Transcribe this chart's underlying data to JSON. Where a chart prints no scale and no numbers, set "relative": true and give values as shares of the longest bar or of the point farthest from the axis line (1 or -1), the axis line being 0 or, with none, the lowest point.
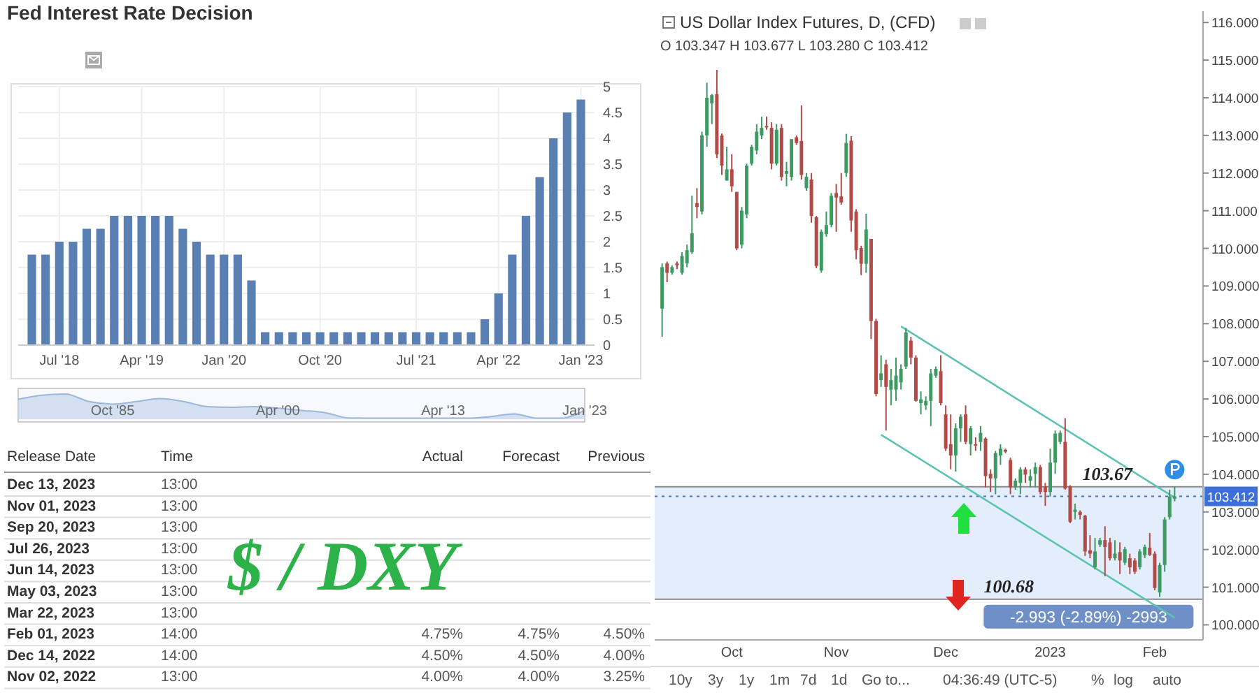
{
  "chart_data": [
    {
      "type": "bar",
      "title": "Fed Interest Rate Decision",
      "categories": [
        null,
        null,
        "Jul '18",
        null,
        null,
        null,
        null,
        null,
        "Apr '19",
        null,
        null,
        null,
        null,
        null,
        "Jan '20",
        null,
        null,
        null,
        null,
        null,
        null,
        "Oct '20",
        null,
        null,
        null,
        null,
        null,
        null,
        "Jul '21",
        null,
        null,
        null,
        null,
        null,
        "Apr '22",
        null,
        null,
        null,
        null,
        null,
        "Jan '23"
      ],
      "values": [
        1.75,
        1.75,
        2,
        2,
        2.25,
        2.25,
        2.5,
        2.5,
        2.5,
        2.5,
        2.5,
        2.25,
        2,
        1.75,
        1.75,
        1.75,
        1.25,
        0.25,
        0.25,
        0.25,
        0.25,
        0.25,
        0.25,
        0.25,
        0.25,
        0.25,
        0.25,
        0.25,
        0.25,
        0.25,
        0.25,
        0.25,
        0.25,
        0.5,
        1,
        1.75,
        2.5,
        3.25,
        4,
        4.5,
        4.75
      ],
      "color": "#5a7fb2",
      "ylim": [
        0,
        5
      ],
      "yticks": [
        0,
        0.5,
        1,
        1.5,
        2,
        2.5,
        3,
        3.5,
        4,
        4.5,
        5
      ],
      "grid": true
    },
    {
      "type": "area",
      "relative": true,
      "tick_labels": "x",
      "color": "#b9cfea",
      "categories": [
        null,
        null,
        null,
        null,
        "Oct '85",
        null,
        null,
        null,
        null,
        null,
        null,
        "Apr '00",
        null,
        null,
        null,
        null,
        null,
        null,
        "Apr '13",
        null,
        null,
        null,
        null,
        null,
        "Jan '23"
      ],
      "values": [
        0.79,
        0.95,
        1,
        0.7,
        0.6,
        0.7,
        0.82,
        0.7,
        0.5,
        0.47,
        0.5,
        0.44,
        0.35,
        0.26,
        0.05,
        0.04,
        0.04,
        0.04,
        0.04,
        0.04,
        0.1,
        0.21,
        0.04,
        0.04,
        0.35
      ]
    },
    {
      "type": "other",
      "categories": [
        "Release Date",
        "Time",
        "Actual",
        "Forecast",
        "Previous"
      ],
      "y_categories": [
        "Dec 13, 2023",
        "Nov 01, 2023",
        "Sep 20, 2023",
        "Jul 26, 2023",
        "Jun 14, 2023",
        "May 03, 2023",
        "Mar 22, 2023",
        "Feb 01, 2023",
        "Dec 14, 2022",
        "Nov 02, 2022"
      ],
      "cell_labels": [
        [
          "13:00",
          null,
          null,
          null
        ],
        [
          "13:00",
          null,
          null,
          null
        ],
        [
          "13:00",
          null,
          null,
          null
        ],
        [
          "13:00",
          null,
          null,
          null
        ],
        [
          "13:00",
          null,
          null,
          null
        ],
        [
          "13:00",
          null,
          null,
          null
        ],
        [
          "13:00",
          null,
          null,
          null
        ],
        [
          "14:00",
          "4.75%",
          "4.75%",
          "4.50%"
        ],
        [
          "14:00",
          "4.50%",
          "4.50%",
          "4.00%"
        ],
        [
          "13:00",
          "4.00%",
          "4.00%",
          "3.25%"
        ]
      ],
      "annotations": [
        "$ / DXY"
      ]
    },
    {
      "type": "candlestick",
      "title": "US Dollar Index Futures, D, (CFD)",
      "subtitle": "O 103.347  H 103.677  L 103.280  C 103.412",
      "categories": [
        null,
        null,
        null,
        null,
        null,
        null,
        null,
        null,
        null,
        null,
        null,
        null,
        null,
        null,
        "Oct",
        null,
        null,
        null,
        null,
        null,
        null,
        null,
        null,
        null,
        null,
        null,
        null,
        null,
        null,
        null,
        null,
        null,
        null,
        null,
        null,
        "Nov",
        null,
        null,
        null,
        null,
        null,
        null,
        null,
        null,
        null,
        null,
        null,
        null,
        null,
        null,
        null,
        null,
        null,
        null,
        null,
        null,
        null,
        "Dec",
        null,
        null,
        null,
        null,
        null,
        null,
        null,
        null,
        null,
        null,
        null,
        null,
        null,
        null,
        null,
        null,
        null,
        null,
        null,
        null,
        "2023",
        null,
        null,
        null,
        null,
        null,
        null,
        null,
        null,
        null,
        null,
        null,
        null,
        null,
        null,
        null,
        null,
        null,
        null,
        null,
        null,
        "Feb",
        null,
        null,
        null,
        null
      ],
      "ohlc": [
        [
          108.4,
          109.6,
          107.65,
          109.5
        ],
        [
          109.6,
          109.65,
          109.1,
          109.35
        ],
        [
          109.35,
          109.55,
          109.3,
          109.5
        ],
        [
          109.6,
          109.65,
          109.45,
          109.55
        ],
        [
          109.35,
          109.9,
          109.3,
          109.8
        ],
        [
          109.6,
          110.1,
          109.5,
          109.95
        ],
        [
          109.9,
          111.4,
          109.85,
          110.4
        ],
        [
          111.2,
          111.6,
          110.8,
          111.1
        ],
        [
          110.98,
          113.1,
          110.9,
          113.0
        ],
        [
          113.0,
          114.4,
          112.7,
          114.0
        ],
        [
          113.85,
          114.1,
          113.3,
          114.07
        ],
        [
          114.1,
          114.74,
          112.4,
          112.5
        ],
        [
          113.0,
          113.05,
          111.95,
          112.2
        ],
        [
          111.8,
          112.7,
          111.8,
          112.1
        ],
        [
          112.1,
          112.5,
          111.5,
          111.65
        ],
        [
          111.5,
          111.5,
          109.95,
          110.0
        ],
        [
          110.1,
          111.1,
          110.0,
          111.0
        ],
        [
          110.9,
          112.25,
          110.8,
          112.2
        ],
        [
          112.25,
          112.75,
          112.2,
          112.7
        ],
        [
          112.6,
          113.3,
          112.5,
          113.1
        ],
        [
          113.0,
          113.5,
          112.9,
          113.2
        ],
        [
          113.25,
          113.5,
          113.15,
          113.22
        ],
        [
          113.2,
          113.35,
          112.1,
          112.25
        ],
        [
          112.25,
          113.3,
          112.2,
          113.15
        ],
        [
          113.2,
          113.3,
          111.8,
          111.9
        ],
        [
          111.98,
          112.3,
          111.65,
          112.05
        ],
        [
          111.9,
          112.9,
          111.8,
          112.9
        ],
        [
          112.95,
          113.0,
          112.75,
          112.8
        ],
        [
          112.85,
          113.8,
          111.83,
          111.95
        ],
        [
          111.6,
          112.0,
          111.53,
          111.9
        ],
        [
          111.83,
          112.0,
          110.68,
          110.86
        ],
        [
          110.83,
          110.86,
          109.47,
          109.53
        ],
        [
          109.41,
          110.5,
          109.35,
          110.44
        ],
        [
          110.38,
          110.98,
          110.31,
          110.62
        ],
        [
          110.62,
          111.47,
          110.56,
          111.4
        ],
        [
          111.47,
          111.71,
          110.44,
          111.35
        ],
        [
          111.38,
          112.0,
          111.16,
          111.22
        ],
        [
          112.0,
          113.04,
          111.9,
          112.8
        ],
        [
          112.86,
          112.98,
          110.44,
          110.74
        ],
        [
          110.98,
          111.04,
          109.71,
          109.95
        ],
        [
          110.01,
          110.07,
          109.29,
          109.59
        ],
        [
          109.59,
          110.92,
          109.35,
          110.5
        ],
        [
          110.25,
          110.25,
          107.59,
          108.07
        ],
        [
          108.07,
          108.13,
          106.07,
          106.13
        ],
        [
          106.5,
          107.16,
          106.32,
          106.68
        ],
        [
          106.92,
          107.04,
          105.16,
          106.32
        ],
        [
          106.25,
          106.8,
          105.83,
          106.5
        ],
        [
          106.25,
          107.1,
          105.95,
          106.62
        ],
        [
          106.44,
          106.92,
          106.25,
          106.8
        ],
        [
          106.86,
          107.89,
          106.8,
          107.77
        ],
        [
          107.55,
          107.65,
          106.92,
          107.1
        ],
        [
          107.1,
          107.16,
          105.93,
          105.95
        ],
        [
          105.89,
          106.2,
          105.59,
          105.99
        ],
        [
          105.83,
          106.07,
          105.71,
          105.95
        ],
        [
          105.95,
          106.8,
          105.28,
          106.68
        ],
        [
          106.62,
          106.86,
          106.56,
          106.8
        ],
        [
          106.74,
          107.16,
          105.83,
          105.89
        ],
        [
          105.59,
          105.83,
          104.62,
          104.68
        ],
        [
          104.8,
          105.59,
          104.13,
          104.5
        ],
        [
          104.5,
          105.35,
          104.07,
          105.22
        ],
        [
          105.22,
          105.59,
          104.86,
          105.53
        ],
        [
          105.59,
          105.83,
          104.8,
          104.86
        ],
        [
          104.8,
          105.28,
          104.5,
          105.22
        ],
        [
          104.8,
          104.98,
          104.62,
          104.78
        ],
        [
          104.86,
          105.28,
          104.62,
          105.1
        ],
        [
          104.95,
          104.98,
          103.65,
          103.95
        ],
        [
          104.01,
          104.13,
          103.53,
          103.89
        ],
        [
          103.89,
          104.62,
          103.47,
          104.56
        ],
        [
          104.5,
          104.8,
          104.25,
          104.68
        ],
        [
          104.65,
          104.68,
          104.56,
          104.6
        ],
        [
          104.38,
          104.44,
          103.47,
          103.65
        ],
        [
          103.65,
          103.89,
          103.59,
          103.83
        ],
        [
          103.77,
          104.19,
          103.47,
          104.13
        ],
        [
          104.13,
          104.19,
          103.77,
          103.99
        ],
        [
          103.83,
          104.13,
          103.65,
          103.95
        ],
        [
          104.01,
          104.31,
          103.65,
          104.19
        ],
        [
          104.19,
          104.25,
          103.47,
          103.53
        ],
        [
          103.68,
          103.77,
          103.16,
          103.53
        ],
        [
          103.53,
          104.68,
          103.41,
          104.31
        ],
        [
          104.31,
          105.16,
          104.01,
          105.08
        ],
        [
          104.86,
          105.16,
          104.8,
          105.1
        ],
        [
          104.86,
          105.49,
          103.59,
          103.62
        ],
        [
          103.68,
          103.71,
          102.7,
          102.74
        ],
        [
          103.0,
          103.22,
          102.8,
          103.06
        ],
        [
          103.0,
          103.04,
          102.8,
          102.92
        ],
        [
          102.9,
          102.92,
          101.83,
          101.95
        ],
        [
          101.98,
          102.38,
          101.77,
          101.89
        ],
        [
          101.53,
          102.31,
          101.47,
          101.95
        ],
        [
          102.13,
          102.31,
          102.07,
          102.25
        ],
        [
          102.25,
          102.62,
          101.29,
          102.07
        ],
        [
          102.19,
          102.31,
          101.71,
          101.77
        ],
        [
          101.77,
          102.25,
          101.71,
          101.89
        ],
        [
          101.93,
          102.19,
          101.35,
          101.71
        ],
        [
          101.65,
          102.07,
          101.59,
          102.01
        ],
        [
          101.77,
          101.89,
          101.35,
          101.53
        ],
        [
          101.71,
          101.77,
          101.35,
          101.41
        ],
        [
          101.53,
          102.01,
          101.47,
          101.95
        ],
        [
          101.85,
          102.13,
          101.77,
          102.07
        ],
        [
          102.05,
          102.44,
          101.83,
          101.86
        ],
        [
          101.89,
          101.95,
          100.92,
          100.98
        ],
        [
          100.86,
          101.65,
          100.74,
          101.59
        ],
        [
          101.59,
          102.86,
          101.41,
          102.8
        ],
        [
          102.86,
          103.59,
          102.8,
          103.41
        ],
        [
          103.347,
          103.677,
          103.28,
          103.412
        ]
      ],
      "colors": [
        "#3c9a62",
        "#b24a48",
        "#3c9a62",
        "#b24a48",
        "#3c9a62",
        "#3c9a62",
        "#3c9a62",
        "#b24a48",
        "#3c9a62",
        "#3c9a62",
        "#3c9a62",
        "#b24a48",
        "#b24a48",
        "#3c9a62",
        "#b24a48",
        "#b24a48",
        "#3c9a62",
        "#3c9a62",
        "#3c9a62",
        "#3c9a62",
        "#3c9a62",
        "#b24a48",
        "#b24a48",
        "#3c9a62",
        "#b24a48",
        "#3c9a62",
        "#3c9a62",
        "#b24a48",
        "#b24a48",
        "#3c9a62",
        "#b24a48",
        "#b24a48",
        "#3c9a62",
        "#3c9a62",
        "#3c9a62",
        "#b24a48",
        "#b24a48",
        "#3c9a62",
        "#b24a48",
        "#b24a48",
        "#b24a48",
        "#3c9a62",
        "#b24a48",
        "#b24a48",
        "#3c9a62",
        "#b24a48",
        "#3c9a62",
        "#3c9a62",
        "#3c9a62",
        "#3c9a62",
        "#b24a48",
        "#b24a48",
        "#3c9a62",
        "#3c9a62",
        "#3c9a62",
        "#3c9a62",
        "#b24a48",
        "#b24a48",
        "#b24a48",
        "#3c9a62",
        "#3c9a62",
        "#b24a48",
        "#3c9a62",
        "#b24a48",
        "#3c9a62",
        "#b24a48",
        "#b24a48",
        "#3c9a62",
        "#3c9a62",
        "#b24a48",
        "#b24a48",
        "#3c9a62",
        "#3c9a62",
        "#b24a48",
        "#3c9a62",
        "#3c9a62",
        "#b24a48",
        "#b24a48",
        "#3c9a62",
        "#3c9a62",
        "#3c9a62",
        "#b24a48",
        "#b24a48",
        "#3c9a62",
        "#b24a48",
        "#b24a48",
        "#b24a48",
        "#3c9a62",
        "#3c9a62",
        "#b24a48",
        "#b24a48",
        "#3c9a62",
        "#b24a48",
        "#3c9a62",
        "#b24a48",
        "#b24a48",
        "#3c9a62",
        "#3c9a62",
        "#b24a48",
        "#b24a48",
        "#3c9a62",
        "#3c9a62",
        "#3c9a62",
        "#3c9a62"
      ],
      "series": [
        {
          "type": "line",
          "color": "#5cc3b0",
          "values": [
            null,
            null,
            null,
            null,
            null,
            null,
            null,
            null,
            null,
            null,
            null,
            null,
            null,
            null,
            null,
            null,
            null,
            null,
            null,
            null,
            null,
            null,
            null,
            null,
            null,
            null,
            null,
            null,
            null,
            null,
            null,
            null,
            null,
            null,
            null,
            null,
            null,
            null,
            null,
            null,
            null,
            null,
            null,
            null,
            105.05,
            null,
            null,
            null,
            null,
            null,
            null,
            null,
            null,
            null,
            null,
            null,
            null,
            null,
            null,
            null,
            null,
            null,
            null,
            null,
            null,
            null,
            null,
            null,
            null,
            null,
            null,
            null,
            null,
            null,
            null,
            null,
            null,
            null,
            null,
            null,
            null,
            null,
            null,
            null,
            null,
            null,
            null,
            null,
            null,
            null,
            null,
            null,
            null,
            null,
            null,
            null,
            null,
            null,
            null,
            null,
            null,
            null,
            null,
            100.19
          ]
        },
        {
          "type": "line",
          "color": "#5cc3b0",
          "values": [
            null,
            null,
            null,
            null,
            null,
            null,
            null,
            null,
            null,
            null,
            null,
            null,
            null,
            null,
            null,
            null,
            null,
            null,
            null,
            null,
            null,
            null,
            null,
            null,
            null,
            null,
            null,
            null,
            null,
            null,
            null,
            null,
            null,
            null,
            null,
            null,
            null,
            null,
            null,
            null,
            null,
            null,
            null,
            null,
            null,
            null,
            null,
            null,
            107.93,
            null,
            null,
            null,
            null,
            null,
            null,
            null,
            null,
            null,
            null,
            null,
            null,
            null,
            null,
            null,
            null,
            null,
            null,
            null,
            null,
            null,
            null,
            null,
            null,
            null,
            null,
            null,
            null,
            null,
            null,
            null,
            null,
            null,
            null,
            null,
            null,
            null,
            null,
            null,
            null,
            null,
            null,
            null,
            null,
            null,
            null,
            null,
            null,
            null,
            null,
            null,
            null,
            null,
            null,
            103.38
          ]
        }
      ],
      "ylim": [
        99.6,
        116.3
      ],
      "yticks": [
        {
          "value": 100,
          "label": "100.000"
        },
        {
          "value": 101,
          "label": "101.000"
        },
        {
          "value": 102,
          "label": "102.000"
        },
        {
          "value": 103,
          "label": "103.000"
        },
        {
          "value": 104,
          "label": "104.000"
        },
        {
          "value": 105,
          "label": "105.000"
        },
        {
          "value": 106,
          "label": "106.000"
        },
        {
          "value": 107,
          "label": "107.000"
        },
        {
          "value": 108,
          "label": "108.000"
        },
        {
          "value": 109,
          "label": "109.000"
        },
        {
          "value": 110,
          "label": "110.000"
        },
        {
          "value": 111,
          "label": "111.000"
        },
        {
          "value": 112,
          "label": "112.000"
        },
        {
          "value": 113,
          "label": "113.000"
        },
        {
          "value": 114,
          "label": "114.000"
        },
        {
          "value": 115,
          "label": "115.000"
        },
        {
          "value": 116,
          "label": "116.000"
        }
      ],
      "ref_lines": [
        {
          "axis": "y",
          "value": 103.412,
          "label": "103.412",
          "color": "#3d6fd9",
          "line_style": "dotted"
        },
        {
          "axis": "y",
          "value": 103.67,
          "label": "103.67",
          "color": "#8a8a8a",
          "line_style": "solid"
        },
        {
          "axis": "y",
          "value": 100.68,
          "label": "100.68",
          "color": "#8a8a8a",
          "line_style": "solid"
        }
      ],
      "bands": [
        {
          "axis": "y",
          "from": 100.68,
          "to": 103.67,
          "label": "-2.993 (-2.89%) -2993",
          "color": "#dde9fa"
        }
      ],
      "annotations": [
        "10y",
        "3y",
        "1y",
        "1m",
        "7d",
        "1d",
        "Go to...",
        "04:36:49 (UTC-5)",
        "%",
        "log",
        "auto"
      ]
    }
  ]
}
